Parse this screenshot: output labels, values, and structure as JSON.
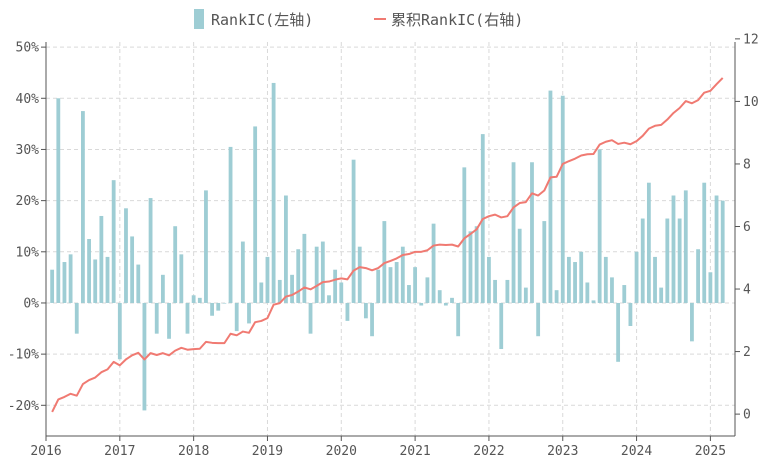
{
  "chart_data": {
    "type": "bar+line",
    "legend": {
      "placement": "top-center",
      "bar_label": "RankIC(左轴)",
      "line_label": "累积RankIC(右轴)"
    },
    "colors": {
      "bar": "#9ecdd4",
      "line": "#f07a72",
      "grid": "#d9d9d9",
      "axis": "#555555"
    },
    "grid": true,
    "x_start": "2016-02",
    "x_ticks": [
      "2016",
      "2017",
      "2018",
      "2019",
      "2020",
      "2021",
      "2022",
      "2023",
      "2024",
      "2025"
    ],
    "x_range": [
      "2016-01",
      "2025-05"
    ],
    "y_left": {
      "range": [
        -26,
        51
      ],
      "ticks": [
        -20,
        -10,
        0,
        10,
        20,
        30,
        40,
        50
      ],
      "tick_labels": [
        "-20%",
        "-10%",
        "0%",
        "10%",
        "20%",
        "30%",
        "40%",
        "50%"
      ]
    },
    "y_right": {
      "range": [
        -0.7,
        11.9
      ],
      "ticks": [
        0,
        2,
        4,
        6,
        8,
        10,
        12
      ],
      "tick_labels": [
        "0",
        "2",
        "4",
        "6",
        "8",
        "10",
        "12"
      ]
    },
    "series": [
      {
        "name": "RankIC(左轴)",
        "type": "bar",
        "axis": "left",
        "unit": "%",
        "values": [
          6.5,
          40,
          8,
          9.5,
          -6,
          37.5,
          12.5,
          8.5,
          17,
          9,
          24,
          -11,
          18.5,
          13,
          7.5,
          -21,
          20.5,
          -6,
          5.5,
          -7,
          15,
          9.5,
          -6,
          1.5,
          1,
          22,
          -2.5,
          -1.5,
          0,
          30.5,
          -5.5,
          12,
          -4,
          34.5,
          4,
          9,
          43,
          4.5,
          21,
          5.5,
          10.5,
          13.5,
          -6,
          11,
          12,
          1.5,
          6.5,
          4,
          -3.5,
          28,
          11,
          -3,
          -6.5,
          6.5,
          16,
          7,
          8,
          11,
          3.5,
          7,
          -0.5,
          5,
          15.5,
          2.5,
          -0.5,
          1,
          -6.5,
          26.5,
          14,
          15,
          33,
          9,
          4.5,
          -9,
          4.5,
          27.5,
          14.5,
          3,
          27.5,
          -6.5,
          16,
          41.5,
          2.5,
          40.5,
          9,
          8,
          10,
          4,
          0.5,
          30,
          9,
          5,
          -11.5,
          3.5,
          -4.5,
          10,
          16.5,
          23.5,
          9,
          3,
          16.5,
          21,
          16.5,
          22,
          -7.5,
          10.5,
          23.5,
          6,
          21,
          20
        ]
      },
      {
        "name": "累积RankIC(右轴)",
        "type": "line",
        "axis": "right",
        "values": [
          0.07,
          0.47,
          0.55,
          0.65,
          0.59,
          0.96,
          1.09,
          1.17,
          1.34,
          1.43,
          1.67,
          1.56,
          1.75,
          1.88,
          1.96,
          1.75,
          1.95,
          1.89,
          1.95,
          1.88,
          2.03,
          2.12,
          2.06,
          2.08,
          2.09,
          2.31,
          2.28,
          2.27,
          2.27,
          2.57,
          2.52,
          2.64,
          2.6,
          2.94,
          2.98,
          3.07,
          3.5,
          3.55,
          3.76,
          3.81,
          3.92,
          4.05,
          3.99,
          4.1,
          4.22,
          4.24,
          4.3,
          4.34,
          4.31,
          4.59,
          4.7,
          4.67,
          4.6,
          4.67,
          4.83,
          4.9,
          4.98,
          5.09,
          5.12,
          5.19,
          5.19,
          5.24,
          5.39,
          5.42,
          5.41,
          5.42,
          5.36,
          5.62,
          5.76,
          5.91,
          6.24,
          6.33,
          6.38,
          6.29,
          6.33,
          6.61,
          6.75,
          6.78,
          7.06,
          6.99,
          7.15,
          7.57,
          7.59,
          8.0,
          8.09,
          8.17,
          8.27,
          8.31,
          8.32,
          8.62,
          8.71,
          8.76,
          8.64,
          8.68,
          8.63,
          8.73,
          8.9,
          9.13,
          9.22,
          9.25,
          9.42,
          9.63,
          9.79,
          10.01,
          9.94,
          10.04,
          10.28,
          10.34,
          10.55,
          10.75
        ]
      }
    ]
  }
}
